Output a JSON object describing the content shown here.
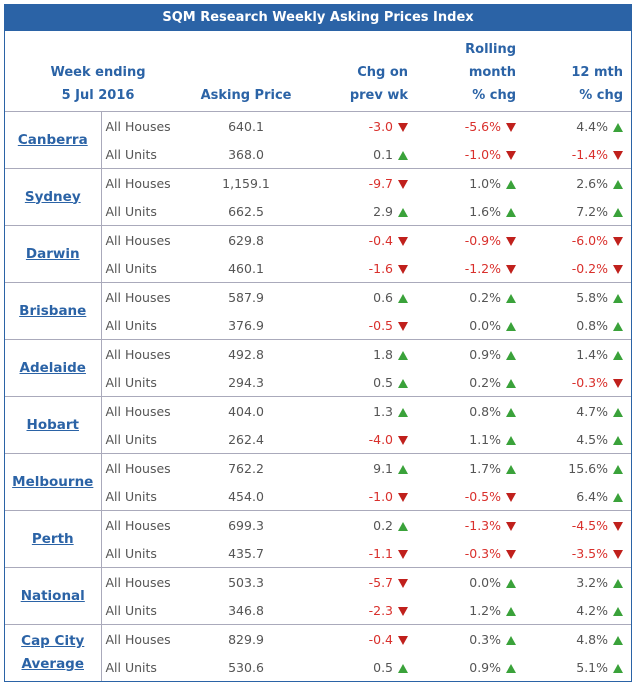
{
  "title": "SQM Research Weekly Asking Prices Index",
  "header": {
    "week": [
      "Week ending",
      "5 Jul 2016"
    ],
    "asking_price": "Asking Price",
    "chg_prev_wk": [
      "Chg on",
      "prev wk"
    ],
    "rolling": [
      "Rolling",
      "month",
      "% chg"
    ],
    "twelve_mth": [
      "12 mth",
      "% chg"
    ]
  },
  "groups": [
    {
      "city": [
        "Canberra"
      ],
      "rows": [
        [
          "All Houses",
          "640.1",
          "-3.0",
          "-5.6%",
          "4.4%"
        ],
        [
          "All Units",
          "368.0",
          "0.1",
          "-1.0%",
          "-1.4%"
        ]
      ]
    },
    {
      "city": [
        "Sydney"
      ],
      "rows": [
        [
          "All Houses",
          "1,159.1",
          "-9.7",
          "1.0%",
          "2.6%"
        ],
        [
          "All Units",
          "662.5",
          "2.9",
          "1.6%",
          "7.2%"
        ]
      ]
    },
    {
      "city": [
        "Darwin"
      ],
      "rows": [
        [
          "All Houses",
          "629.8",
          "-0.4",
          "-0.9%",
          "-6.0%"
        ],
        [
          "All Units",
          "460.1",
          "-1.6",
          "-1.2%",
          "-0.2%"
        ]
      ]
    },
    {
      "city": [
        "Brisbane"
      ],
      "rows": [
        [
          "All Houses",
          "587.9",
          "0.6",
          "0.2%",
          "5.8%"
        ],
        [
          "All Units",
          "376.9",
          "-0.5",
          "0.0%",
          "0.8%"
        ]
      ]
    },
    {
      "city": [
        "Adelaide"
      ],
      "rows": [
        [
          "All Houses",
          "492.8",
          "1.8",
          "0.9%",
          "1.4%"
        ],
        [
          "All Units",
          "294.3",
          "0.5",
          "0.2%",
          "-0.3%"
        ]
      ]
    },
    {
      "city": [
        "Hobart"
      ],
      "rows": [
        [
          "All Houses",
          "404.0",
          "1.3",
          "0.8%",
          "4.7%"
        ],
        [
          "All Units",
          "262.4",
          "-4.0",
          "1.1%",
          "4.5%"
        ]
      ]
    },
    {
      "city": [
        "Melbourne"
      ],
      "rows": [
        [
          "All Houses",
          "762.2",
          "9.1",
          "1.7%",
          "15.6%"
        ],
        [
          "All Units",
          "454.0",
          "-1.0",
          "-0.5%",
          "6.4%"
        ]
      ]
    },
    {
      "city": [
        "Perth"
      ],
      "rows": [
        [
          "All Houses",
          "699.3",
          "0.2",
          "-1.3%",
          "-4.5%"
        ],
        [
          "All Units",
          "435.7",
          "-1.1",
          "-0.3%",
          "-3.5%"
        ]
      ]
    },
    {
      "city": [
        "National"
      ],
      "rows": [
        [
          "All Houses",
          "503.3",
          "-5.7",
          "0.0%",
          "3.2%"
        ],
        [
          "All Units",
          "346.8",
          "-2.3",
          "1.2%",
          "4.2%"
        ]
      ]
    },
    {
      "city": [
        "Cap City",
        "Average"
      ],
      "rows": [
        [
          "All Houses",
          "829.9",
          "-0.4",
          "0.3%",
          "4.8%"
        ],
        [
          "All Units",
          "530.6",
          "0.5",
          "0.9%",
          "5.1%"
        ]
      ]
    }
  ]
}
